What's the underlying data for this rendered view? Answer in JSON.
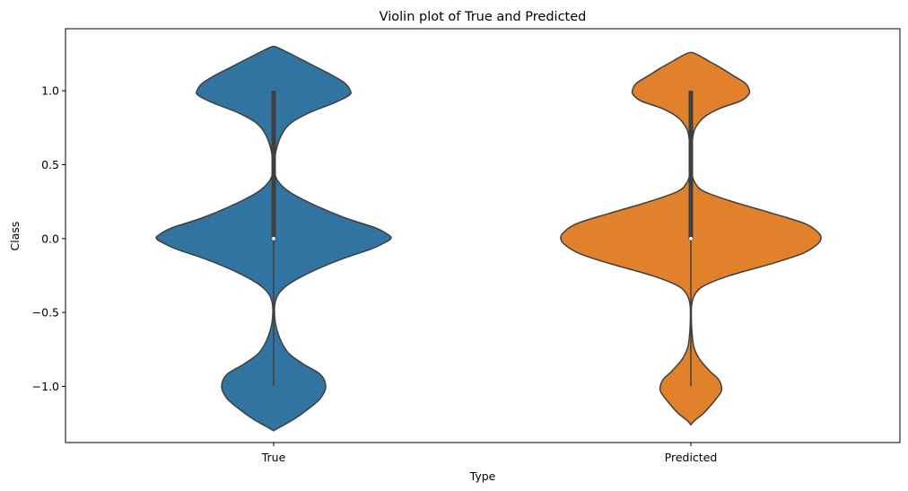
{
  "chart_data": {
    "type": "violin",
    "title": "Violin plot of True and Predicted",
    "xlabel": "Type",
    "ylabel": "Class",
    "categories": [
      "True",
      "Predicted"
    ],
    "ylim": [
      -1.38,
      1.42
    ],
    "yticks": [
      1.0,
      0.5,
      0.0,
      -0.5,
      -1.0
    ],
    "ytick_labels": [
      "1.0",
      "0.5",
      "0.0",
      "−0.5",
      "−1.0"
    ],
    "grid": false,
    "series": [
      {
        "category": "True",
        "color": "#3274a1",
        "range": [
          -1.3,
          1.3
        ],
        "quartiles": {
          "q1": 0.0,
          "median": 0.0,
          "q3": 1.0
        },
        "whiskers": [
          -1.0,
          1.0
        ],
        "density": [
          [
            -1.3,
            0.0
          ],
          [
            -1.27,
            0.06
          ],
          [
            -1.22,
            0.16
          ],
          [
            -1.15,
            0.27
          ],
          [
            -1.08,
            0.36
          ],
          [
            -1.0,
            0.4
          ],
          [
            -0.92,
            0.36
          ],
          [
            -0.85,
            0.23
          ],
          [
            -0.78,
            0.12
          ],
          [
            -0.7,
            0.06
          ],
          [
            -0.6,
            0.02
          ],
          [
            -0.5,
            0.006
          ],
          [
            -0.42,
            0.015
          ],
          [
            -0.36,
            0.05
          ],
          [
            -0.3,
            0.13
          ],
          [
            -0.22,
            0.3
          ],
          [
            -0.14,
            0.52
          ],
          [
            -0.07,
            0.75
          ],
          [
            -0.02,
            0.87
          ],
          [
            0.0,
            0.9
          ],
          [
            0.02,
            0.89
          ],
          [
            0.07,
            0.79
          ],
          [
            0.14,
            0.55
          ],
          [
            0.22,
            0.33
          ],
          [
            0.3,
            0.15
          ],
          [
            0.36,
            0.06
          ],
          [
            0.42,
            0.015
          ],
          [
            0.5,
            0.006
          ],
          [
            0.6,
            0.02
          ],
          [
            0.7,
            0.06
          ],
          [
            0.78,
            0.13
          ],
          [
            0.85,
            0.27
          ],
          [
            0.92,
            0.47
          ],
          [
            0.97,
            0.58
          ],
          [
            1.0,
            0.59
          ],
          [
            1.05,
            0.55
          ],
          [
            1.1,
            0.46
          ],
          [
            1.15,
            0.35
          ],
          [
            1.2,
            0.24
          ],
          [
            1.25,
            0.13
          ],
          [
            1.28,
            0.06
          ],
          [
            1.3,
            0.0
          ]
        ]
      },
      {
        "category": "Predicted",
        "color": "#e1812c",
        "range": [
          -1.26,
          1.26
        ],
        "quartiles": {
          "q1": 0.0,
          "median": 0.0,
          "q3": 1.0
        },
        "whiskers": [
          -1.0,
          1.0
        ],
        "density": [
          [
            -1.26,
            0.0
          ],
          [
            -1.23,
            0.03
          ],
          [
            -1.18,
            0.1
          ],
          [
            -1.1,
            0.18
          ],
          [
            -1.04,
            0.23
          ],
          [
            -1.0,
            0.235
          ],
          [
            -0.95,
            0.21
          ],
          [
            -0.9,
            0.15
          ],
          [
            -0.82,
            0.07
          ],
          [
            -0.74,
            0.025
          ],
          [
            -0.65,
            0.01
          ],
          [
            -0.55,
            0.004
          ],
          [
            -0.45,
            0.006
          ],
          [
            -0.38,
            0.03
          ],
          [
            -0.32,
            0.1
          ],
          [
            -0.25,
            0.3
          ],
          [
            -0.17,
            0.62
          ],
          [
            -0.1,
            0.86
          ],
          [
            -0.04,
            0.97
          ],
          [
            0.0,
            1.0
          ],
          [
            0.04,
            0.98
          ],
          [
            0.1,
            0.88
          ],
          [
            0.17,
            0.63
          ],
          [
            0.25,
            0.32
          ],
          [
            0.32,
            0.1
          ],
          [
            0.38,
            0.03
          ],
          [
            0.45,
            0.006
          ],
          [
            0.55,
            0.004
          ],
          [
            0.65,
            0.01
          ],
          [
            0.74,
            0.03
          ],
          [
            0.82,
            0.1
          ],
          [
            0.88,
            0.22
          ],
          [
            0.93,
            0.38
          ],
          [
            0.97,
            0.44
          ],
          [
            1.0,
            0.45
          ],
          [
            1.05,
            0.42
          ],
          [
            1.1,
            0.33
          ],
          [
            1.15,
            0.24
          ],
          [
            1.2,
            0.14
          ],
          [
            1.24,
            0.06
          ],
          [
            1.26,
            0.0
          ]
        ]
      }
    ]
  }
}
